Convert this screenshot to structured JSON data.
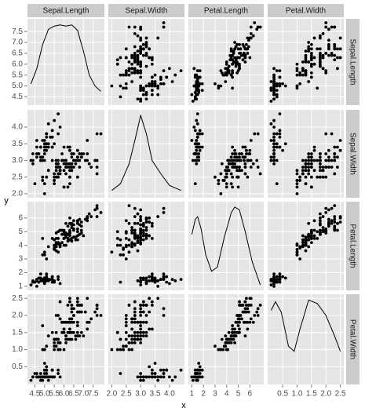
{
  "chart_data": {
    "type": "scatter_matrix",
    "x_label": "x",
    "y_label": "y",
    "grid": true,
    "point_color": "#000000",
    "line_color": "#000000",
    "variables": [
      {
        "name": "Sepal.Length",
        "lim": [
          4.12,
          8.08
        ],
        "ticks": [
          4.5,
          {
            "value": 5,
            "label": "5.0"
          },
          5.5,
          {
            "value": 6,
            "label": "6.0"
          },
          6.5,
          {
            "value": 7,
            "label": "7.0"
          },
          7.5
        ]
      },
      {
        "name": "Sepal.Width",
        "lim": [
          1.88,
          4.52
        ],
        "ticks": [
          {
            "value": 2,
            "label": "2.0"
          },
          2.5,
          {
            "value": 3,
            "label": "3.0"
          },
          3.5,
          {
            "value": 4,
            "label": "4.0"
          }
        ]
      },
      {
        "name": "Petal.Length",
        "lim": [
          0.705,
          7.195
        ],
        "ticks": [
          1,
          2,
          3,
          4,
          5,
          6
        ]
      },
      {
        "name": "Petal.Width",
        "lim": [
          -0.02,
          2.62
        ],
        "ticks": [
          0.5,
          {
            "value": 1,
            "label": "1.0"
          },
          1.5,
          {
            "value": 2,
            "label": "2.0"
          },
          2.5
        ]
      }
    ],
    "densities": [
      {
        "x": [
          4.3,
          4.6,
          4.9,
          5.2,
          5.5,
          5.8,
          6.1,
          6.4,
          6.7,
          7.0,
          7.3,
          7.6,
          7.9
        ],
        "y": [
          5.1,
          5.8,
          6.9,
          7.6,
          7.75,
          7.8,
          7.75,
          7.8,
          7.55,
          6.6,
          5.5,
          5.0,
          4.75
        ]
      },
      {
        "x": [
          2.0,
          2.3,
          2.6,
          2.8,
          3.0,
          3.2,
          3.4,
          3.7,
          4.0,
          4.4
        ],
        "y": [
          2.1,
          2.3,
          2.9,
          3.6,
          4.35,
          3.8,
          3.0,
          2.6,
          2.25,
          2.1
        ]
      },
      {
        "x": [
          1.0,
          1.3,
          1.5,
          1.8,
          2.2,
          2.7,
          3.2,
          3.8,
          4.4,
          4.7,
          5.1,
          5.6,
          6.2,
          6.9
        ],
        "y": [
          4.8,
          5.9,
          6.1,
          5.2,
          3.3,
          2.1,
          2.4,
          4.6,
          6.4,
          6.8,
          6.6,
          5.0,
          2.8,
          1.1
        ]
      },
      {
        "x": [
          0.1,
          0.25,
          0.45,
          0.7,
          0.9,
          1.1,
          1.4,
          1.7,
          2.0,
          2.3,
          2.5
        ],
        "y": [
          2.15,
          2.4,
          2.1,
          1.1,
          0.95,
          1.6,
          2.45,
          2.35,
          2.0,
          1.4,
          0.95
        ]
      }
    ],
    "observations": [
      [
        5.1,
        3.5,
        1.4,
        0.2
      ],
      [
        4.9,
        3.0,
        1.4,
        0.2
      ],
      [
        4.7,
        3.2,
        1.3,
        0.2
      ],
      [
        4.6,
        3.1,
        1.5,
        0.2
      ],
      [
        5.0,
        3.6,
        1.4,
        0.2
      ],
      [
        5.4,
        3.9,
        1.7,
        0.4
      ],
      [
        4.6,
        3.4,
        1.4,
        0.3
      ],
      [
        5.0,
        3.4,
        1.5,
        0.2
      ],
      [
        4.4,
        2.9,
        1.4,
        0.2
      ],
      [
        4.9,
        3.1,
        1.5,
        0.1
      ],
      [
        5.4,
        3.7,
        1.5,
        0.2
      ],
      [
        4.8,
        3.4,
        1.6,
        0.2
      ],
      [
        4.8,
        3.0,
        1.4,
        0.1
      ],
      [
        4.3,
        3.0,
        1.1,
        0.1
      ],
      [
        5.8,
        4.0,
        1.2,
        0.2
      ],
      [
        5.7,
        4.4,
        1.5,
        0.4
      ],
      [
        5.4,
        3.9,
        1.3,
        0.4
      ],
      [
        5.1,
        3.5,
        1.4,
        0.3
      ],
      [
        5.7,
        3.8,
        1.7,
        0.3
      ],
      [
        5.1,
        3.8,
        1.5,
        0.3
      ],
      [
        5.4,
        3.4,
        1.7,
        0.2
      ],
      [
        5.1,
        3.7,
        1.5,
        0.4
      ],
      [
        4.6,
        3.6,
        1.0,
        0.2
      ],
      [
        5.1,
        3.3,
        1.7,
        0.5
      ],
      [
        4.8,
        3.4,
        1.9,
        0.2
      ],
      [
        5.0,
        3.0,
        1.6,
        0.2
      ],
      [
        5.0,
        3.4,
        1.6,
        0.4
      ],
      [
        5.2,
        3.5,
        1.5,
        0.2
      ],
      [
        5.2,
        3.4,
        1.4,
        0.2
      ],
      [
        4.7,
        3.2,
        1.6,
        0.2
      ],
      [
        4.8,
        3.1,
        1.6,
        0.2
      ],
      [
        5.4,
        3.4,
        1.5,
        0.4
      ],
      [
        5.2,
        4.1,
        1.5,
        0.1
      ],
      [
        5.5,
        4.2,
        1.4,
        0.2
      ],
      [
        4.9,
        3.1,
        1.5,
        0.2
      ],
      [
        5.0,
        3.2,
        1.2,
        0.2
      ],
      [
        5.5,
        3.5,
        1.3,
        0.2
      ],
      [
        4.9,
        3.6,
        1.4,
        0.1
      ],
      [
        4.4,
        3.0,
        1.3,
        0.2
      ],
      [
        5.1,
        3.4,
        1.5,
        0.2
      ],
      [
        5.0,
        3.5,
        1.3,
        0.3
      ],
      [
        4.5,
        2.3,
        1.3,
        0.3
      ],
      [
        4.4,
        3.2,
        1.3,
        0.2
      ],
      [
        5.0,
        3.5,
        1.6,
        0.6
      ],
      [
        5.1,
        3.8,
        1.9,
        0.4
      ],
      [
        4.8,
        3.0,
        1.4,
        0.3
      ],
      [
        5.1,
        3.8,
        1.6,
        0.2
      ],
      [
        4.6,
        3.2,
        1.4,
        0.2
      ],
      [
        5.3,
        3.7,
        1.5,
        0.2
      ],
      [
        5.0,
        3.3,
        1.4,
        0.2
      ],
      [
        7.0,
        3.2,
        4.7,
        1.4
      ],
      [
        6.4,
        3.2,
        4.5,
        1.5
      ],
      [
        6.9,
        3.1,
        4.9,
        1.5
      ],
      [
        5.5,
        2.3,
        4.0,
        1.3
      ],
      [
        6.5,
        2.8,
        4.6,
        1.5
      ],
      [
        5.7,
        2.8,
        4.5,
        1.3
      ],
      [
        6.3,
        3.3,
        4.7,
        1.6
      ],
      [
        4.9,
        2.4,
        3.3,
        1.0
      ],
      [
        6.6,
        2.9,
        4.6,
        1.3
      ],
      [
        5.2,
        2.7,
        3.9,
        1.4
      ],
      [
        5.0,
        2.0,
        3.5,
        1.0
      ],
      [
        5.9,
        3.0,
        4.2,
        1.5
      ],
      [
        6.0,
        2.2,
        4.0,
        1.0
      ],
      [
        6.1,
        2.9,
        4.7,
        1.4
      ],
      [
        5.6,
        2.9,
        3.6,
        1.3
      ],
      [
        6.7,
        3.1,
        4.4,
        1.4
      ],
      [
        5.6,
        3.0,
        4.5,
        1.5
      ],
      [
        5.8,
        2.7,
        4.1,
        1.0
      ],
      [
        6.2,
        2.2,
        4.5,
        1.5
      ],
      [
        5.6,
        2.5,
        3.9,
        1.1
      ],
      [
        5.9,
        3.2,
        4.8,
        1.8
      ],
      [
        6.1,
        2.8,
        4.0,
        1.3
      ],
      [
        6.3,
        2.5,
        4.9,
        1.5
      ],
      [
        6.1,
        2.8,
        4.7,
        1.2
      ],
      [
        6.4,
        2.9,
        4.3,
        1.3
      ],
      [
        6.6,
        3.0,
        4.4,
        1.4
      ],
      [
        6.8,
        2.8,
        4.8,
        1.4
      ],
      [
        6.7,
        3.0,
        5.0,
        1.7
      ],
      [
        6.0,
        2.9,
        4.5,
        1.5
      ],
      [
        5.7,
        2.6,
        3.5,
        1.0
      ],
      [
        5.5,
        2.4,
        3.8,
        1.1
      ],
      [
        5.5,
        2.4,
        3.7,
        1.0
      ],
      [
        5.8,
        2.7,
        3.9,
        1.2
      ],
      [
        6.0,
        2.7,
        5.1,
        1.6
      ],
      [
        5.4,
        3.0,
        4.5,
        1.5
      ],
      [
        6.0,
        3.4,
        4.5,
        1.6
      ],
      [
        6.7,
        3.1,
        4.7,
        1.5
      ],
      [
        6.3,
        2.3,
        4.4,
        1.3
      ],
      [
        5.6,
        3.0,
        4.1,
        1.3
      ],
      [
        5.5,
        2.5,
        4.0,
        1.3
      ],
      [
        5.5,
        2.6,
        4.4,
        1.2
      ],
      [
        6.1,
        3.0,
        4.6,
        1.4
      ],
      [
        5.8,
        2.6,
        4.0,
        1.2
      ],
      [
        5.0,
        2.3,
        3.3,
        1.0
      ],
      [
        5.6,
        2.7,
        4.2,
        1.3
      ],
      [
        5.7,
        3.0,
        4.2,
        1.2
      ],
      [
        5.7,
        2.9,
        4.2,
        1.3
      ],
      [
        6.2,
        2.9,
        4.3,
        1.3
      ],
      [
        5.1,
        2.5,
        3.0,
        1.1
      ],
      [
        5.7,
        2.8,
        4.1,
        1.3
      ],
      [
        6.3,
        3.3,
        6.0,
        2.5
      ],
      [
        5.8,
        2.7,
        5.1,
        1.9
      ],
      [
        7.1,
        3.0,
        5.9,
        2.1
      ],
      [
        6.3,
        2.9,
        5.6,
        1.8
      ],
      [
        6.5,
        3.0,
        5.8,
        2.2
      ],
      [
        7.6,
        3.0,
        6.6,
        2.1
      ],
      [
        4.9,
        2.5,
        4.5,
        1.7
      ],
      [
        7.3,
        2.9,
        6.3,
        1.8
      ],
      [
        6.7,
        2.5,
        5.8,
        1.8
      ],
      [
        7.2,
        3.6,
        6.1,
        2.5
      ],
      [
        6.5,
        3.2,
        5.1,
        2.0
      ],
      [
        6.4,
        2.7,
        5.3,
        1.9
      ],
      [
        6.8,
        3.0,
        5.5,
        2.1
      ],
      [
        5.7,
        2.5,
        5.0,
        2.0
      ],
      [
        5.8,
        2.8,
        5.1,
        2.4
      ],
      [
        6.4,
        3.2,
        5.3,
        2.3
      ],
      [
        6.5,
        3.0,
        5.5,
        1.8
      ],
      [
        7.7,
        3.8,
        6.7,
        2.2
      ],
      [
        7.7,
        2.6,
        6.9,
        2.3
      ],
      [
        6.0,
        2.2,
        5.0,
        1.5
      ],
      [
        6.9,
        3.2,
        5.7,
        2.3
      ],
      [
        5.6,
        2.8,
        4.9,
        2.0
      ],
      [
        7.7,
        2.8,
        6.7,
        2.0
      ],
      [
        6.3,
        2.7,
        4.9,
        1.8
      ],
      [
        6.7,
        3.3,
        5.7,
        2.1
      ],
      [
        7.2,
        3.2,
        6.0,
        1.8
      ],
      [
        6.2,
        2.8,
        4.8,
        1.8
      ],
      [
        6.1,
        3.0,
        4.9,
        1.8
      ],
      [
        6.4,
        2.8,
        5.6,
        2.1
      ],
      [
        7.2,
        3.0,
        5.8,
        1.6
      ],
      [
        7.4,
        2.8,
        6.1,
        1.9
      ],
      [
        7.9,
        3.8,
        6.4,
        2.0
      ],
      [
        6.4,
        2.8,
        5.6,
        2.2
      ],
      [
        6.3,
        2.8,
        5.1,
        1.5
      ],
      [
        6.1,
        2.6,
        5.6,
        1.4
      ],
      [
        7.7,
        3.0,
        6.1,
        2.3
      ],
      [
        6.3,
        3.4,
        5.6,
        2.4
      ],
      [
        6.4,
        3.1,
        5.5,
        1.8
      ],
      [
        6.0,
        3.0,
        4.8,
        1.8
      ],
      [
        6.9,
        3.1,
        5.4,
        2.1
      ],
      [
        6.7,
        3.1,
        5.6,
        2.4
      ],
      [
        6.9,
        3.1,
        5.1,
        2.3
      ],
      [
        5.8,
        2.7,
        5.1,
        1.9
      ],
      [
        6.8,
        3.2,
        5.9,
        2.3
      ],
      [
        6.7,
        3.3,
        5.7,
        2.5
      ],
      [
        6.7,
        3.0,
        5.2,
        2.3
      ],
      [
        6.3,
        2.5,
        5.0,
        1.9
      ],
      [
        6.5,
        3.0,
        5.2,
        2.0
      ],
      [
        6.2,
        3.4,
        5.4,
        2.3
      ],
      [
        5.9,
        3.0,
        5.1,
        1.8
      ]
    ]
  }
}
